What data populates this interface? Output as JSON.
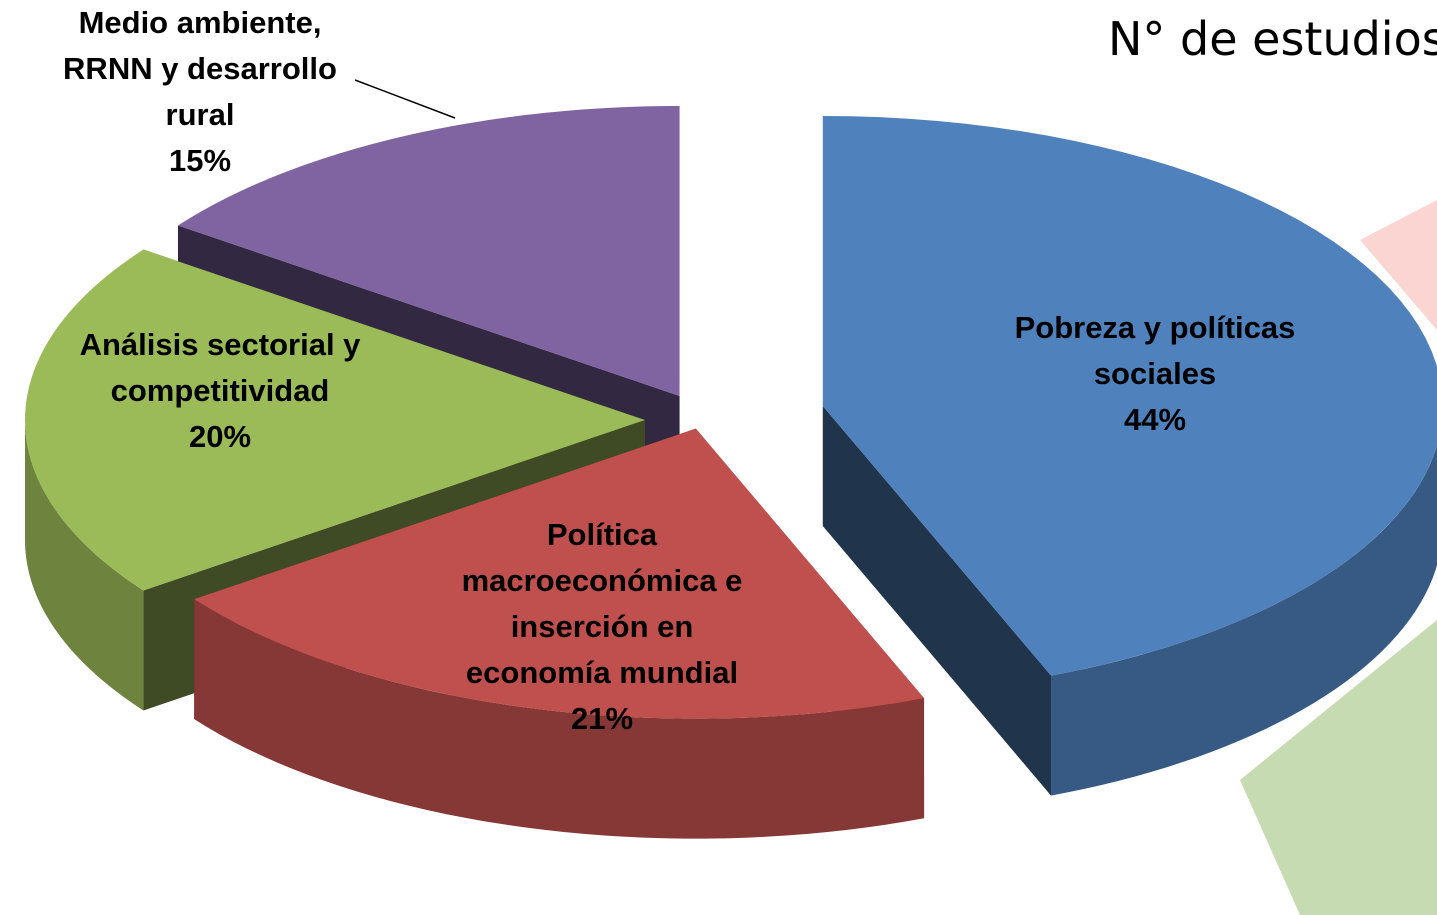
{
  "chart_data": {
    "type": "pie",
    "title": "N° de estudios:",
    "categories": [
      "Pobreza y políticas sociales",
      "Política macroeconómica e inserción en economía mundial",
      "Análisis sectorial y competitividad",
      "Medio ambiente, RRNN y desarrollo rural"
    ],
    "values": [
      44,
      21,
      20,
      15
    ],
    "value_labels": [
      "44%",
      "21%",
      "20%",
      "15%"
    ],
    "colors": [
      "#4f81bd",
      "#c0504d",
      "#9bbb59",
      "#8064a2"
    ]
  }
}
